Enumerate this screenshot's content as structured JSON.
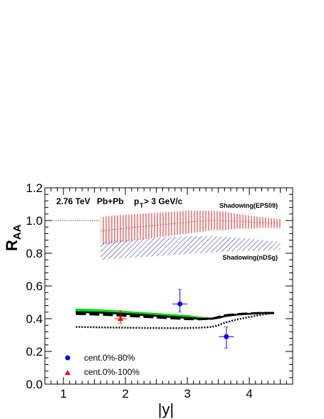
{
  "chart_data": {
    "type": "scatter",
    "title": "",
    "xlabel": "|y|",
    "ylabel": "R_AA",
    "xlim": [
      0.7,
      4.7
    ],
    "ylim": [
      0.0,
      1.2
    ],
    "xticks": [
      1,
      2,
      3,
      4
    ],
    "yticks": [
      0.0,
      0.2,
      0.4,
      0.6,
      0.8,
      1.0,
      1.2
    ],
    "xtick_labels": [
      "1",
      "2",
      "3",
      "4"
    ],
    "ytick_labels": [
      "0.0",
      "0.2",
      "0.4",
      "0.6",
      "0.8",
      "1.0",
      "1.2"
    ],
    "annotations": {
      "energy": "2.76 TeV",
      "system": "Pb+Pb",
      "cut_prefix": "p",
      "cut_sub": "T",
      "cut_suffix": "> 3 GeV/c"
    },
    "legend": {
      "placement": "bottom-left",
      "entries": [
        {
          "label": "cent.0%-80%",
          "marker": "circle",
          "color": "#0000ff"
        },
        {
          "label": "cent.0%-100%",
          "marker": "triangle",
          "color": "#ff0000"
        }
      ]
    },
    "reference_line": {
      "y": 1.0,
      "x": [
        0.7,
        1.6
      ],
      "style": "dotted"
    },
    "bands": [
      {
        "label": "Shadowing(EPS09)",
        "color": "#dd2222",
        "hatch": "vertical",
        "x": [
          1.6,
          1.8,
          2.0,
          2.2,
          2.4,
          2.6,
          2.8,
          3.0,
          3.2,
          3.4,
          3.6,
          3.8,
          4.0,
          4.2,
          4.5
        ],
        "lo": [
          0.85,
          0.86,
          0.87,
          0.88,
          0.89,
          0.9,
          0.91,
          0.92,
          0.93,
          0.94,
          0.94,
          0.95,
          0.95,
          0.955,
          0.955
        ],
        "hi": [
          1.02,
          1.03,
          1.035,
          1.04,
          1.045,
          1.05,
          1.055,
          1.06,
          1.06,
          1.06,
          1.055,
          1.04,
          1.03,
          1.02,
          1.01
        ]
      },
      {
        "label": "Shadowing(nDSg)",
        "color": "#1a1aa0",
        "hatch": "diagonal",
        "x": [
          1.6,
          1.8,
          2.0,
          2.2,
          2.4,
          2.6,
          2.8,
          3.0,
          3.2,
          3.4,
          3.6,
          3.8,
          4.0,
          4.2,
          4.5
        ],
        "lo": [
          0.76,
          0.765,
          0.77,
          0.775,
          0.78,
          0.785,
          0.79,
          0.795,
          0.8,
          0.805,
          0.81,
          0.81,
          0.815,
          0.815,
          0.82
        ],
        "hi": [
          0.87,
          0.875,
          0.88,
          0.885,
          0.89,
          0.895,
          0.9,
          0.905,
          0.905,
          0.905,
          0.9,
          0.895,
          0.89,
          0.88,
          0.87
        ]
      }
    ],
    "series": [
      {
        "style": "green-band",
        "color": "#00dd00",
        "x": [
          1.2,
          1.6,
          2.0,
          2.4,
          2.8,
          3.0,
          3.2,
          3.4
        ],
        "lo": [
          0.44,
          0.435,
          0.425,
          0.415,
          0.405,
          0.4,
          0.395,
          0.395
        ],
        "hi": [
          0.46,
          0.455,
          0.445,
          0.435,
          0.425,
          0.42,
          0.41,
          0.405
        ]
      },
      {
        "style": "solid",
        "color": "#000000",
        "x": [
          1.2,
          1.6,
          2.0,
          2.4,
          2.8,
          3.0,
          3.2,
          3.4,
          3.5,
          3.6,
          3.8,
          4.0,
          4.2,
          4.4
        ],
        "y": [
          0.44,
          0.437,
          0.43,
          0.42,
          0.41,
          0.405,
          0.4,
          0.4,
          0.405,
          0.415,
          0.425,
          0.43,
          0.435,
          0.435
        ]
      },
      {
        "style": "dashed",
        "color": "#000000",
        "x": [
          1.2,
          1.6,
          2.0,
          2.4,
          2.8,
          3.0,
          3.2,
          3.4,
          3.5,
          3.6,
          3.8,
          4.0,
          4.2,
          4.4
        ],
        "y": [
          0.43,
          0.425,
          0.418,
          0.41,
          0.402,
          0.398,
          0.397,
          0.4,
          0.41,
          0.42,
          0.428,
          0.432,
          0.435,
          0.435
        ]
      },
      {
        "style": "dotted",
        "color": "#000000",
        "x": [
          1.2,
          1.6,
          2.0,
          2.4,
          2.8,
          3.0,
          3.2,
          3.4,
          3.5,
          3.6,
          3.8,
          4.0,
          4.2,
          4.4
        ],
        "y": [
          0.35,
          0.347,
          0.345,
          0.343,
          0.342,
          0.343,
          0.345,
          0.35,
          0.36,
          0.375,
          0.395,
          0.41,
          0.425,
          0.435
        ]
      }
    ],
    "points": [
      {
        "legend": "cent.0%-80%",
        "marker": "circle",
        "color": "#0000ff",
        "data": [
          {
            "x": 2.88,
            "y": 0.49,
            "xerr": 0.12,
            "yerr_lo": 0.05,
            "yerr_hi": 0.09
          },
          {
            "x": 3.63,
            "y": 0.29,
            "xerr": 0.12,
            "yerr_lo": 0.07,
            "yerr_hi": 0.06
          }
        ]
      },
      {
        "legend": "cent.0%-100%",
        "marker": "triangle",
        "color": "#ff0000",
        "data": [
          {
            "x": 1.92,
            "y": 0.4,
            "xerr": 0.1,
            "yerr_lo": 0.03,
            "yerr_hi": 0.05
          }
        ]
      }
    ]
  }
}
